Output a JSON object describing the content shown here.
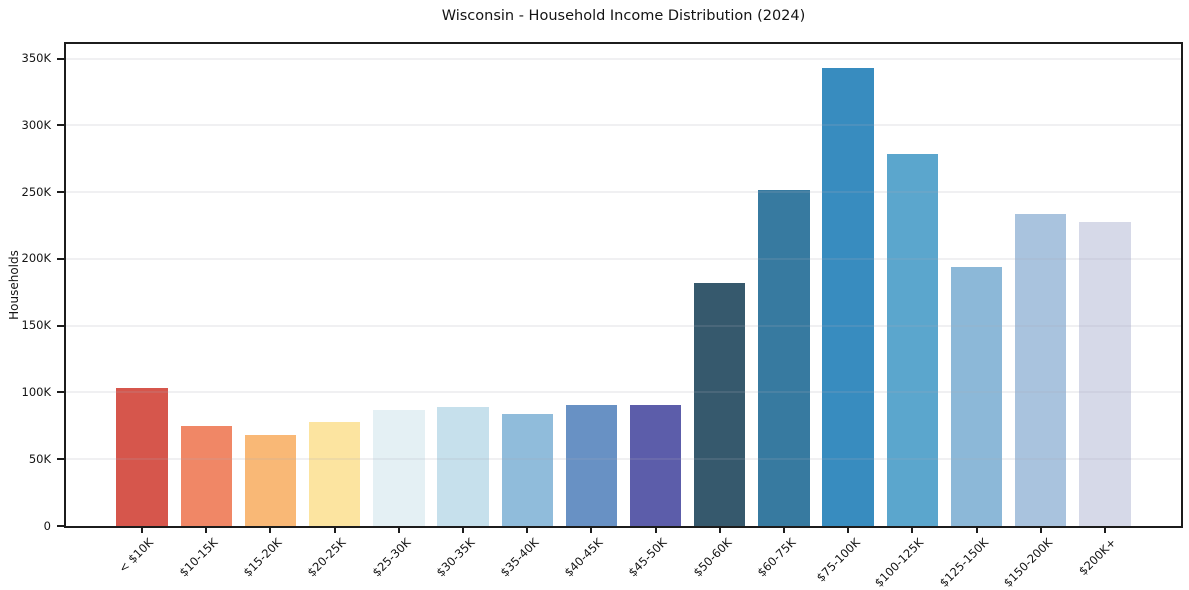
{
  "chart_data": {
    "type": "bar",
    "title": "Wisconsin - Household Income Distribution (2024)",
    "xlabel": "",
    "ylabel": "Households",
    "legend": "none",
    "grid": "horizontal",
    "categories": [
      "< $10K",
      "$10-15K",
      "$15-20K",
      "$20-25K",
      "$25-30K",
      "$30-35K",
      "$35-40K",
      "$40-45K",
      "$45-50K",
      "$50-60K",
      "$60-75K",
      "$75-100K",
      "$100-125K",
      "$125-150K",
      "$150-200K",
      "$200K+"
    ],
    "values": [
      103000,
      75000,
      68000,
      78000,
      87000,
      89000,
      84000,
      91000,
      91000,
      182000,
      252000,
      343000,
      279000,
      194000,
      234000,
      228000
    ],
    "bar_colors": [
      "#d6564c",
      "#f08766",
      "#f9b876",
      "#fce4a0",
      "#e4f0f4",
      "#c6e0ec",
      "#90bcdb",
      "#6891c4",
      "#5c5daa",
      "#36596d",
      "#377aa0",
      "#388cbf",
      "#5ba6cd",
      "#8cb8d8",
      "#a9c3de",
      "#d6d9e8"
    ],
    "ylim": [
      0,
      361000
    ],
    "yticks": {
      "values": [
        0,
        50000,
        100000,
        150000,
        200000,
        250000,
        300000,
        350000
      ],
      "labels": [
        "0",
        "50K",
        "100K",
        "150K",
        "200K",
        "250K",
        "300K",
        "350K"
      ]
    }
  }
}
